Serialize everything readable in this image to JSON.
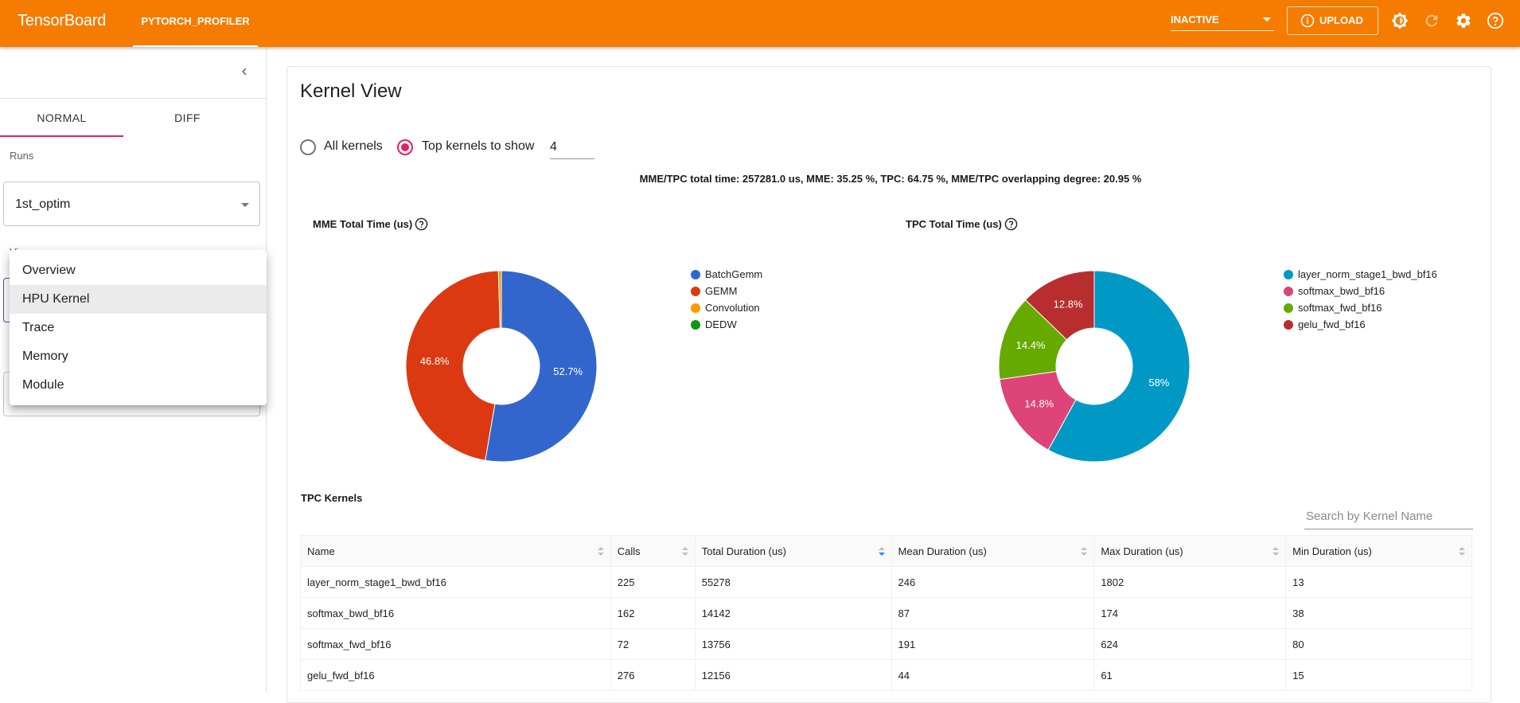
{
  "app": {
    "title": "TensorBoard",
    "active_plugin": "PYTORCH_PROFILER"
  },
  "toolbar": {
    "status_value": "INACTIVE",
    "upload_label": "UPLOAD"
  },
  "sidebar": {
    "tabs": [
      "NORMAL",
      "DIFF"
    ],
    "active_tab": "NORMAL",
    "runs_label": "Runs",
    "run_value": "1st_optim",
    "views_label": "Views",
    "views_menu": [
      "Overview",
      "HPU Kernel",
      "Trace",
      "Memory",
      "Module"
    ],
    "selected_view": "HPU Kernel"
  },
  "main": {
    "title": "Kernel View",
    "radio_all": "All kernels",
    "radio_top": "Top kernels to show",
    "top_k_value": "4",
    "summary": "MME/TPC total time: 257281.0 us, MME: 35.25 %, TPC: 64.75 %, MME/TPC overlapping degree: 20.95 %",
    "section_title": "TPC Kernels",
    "search_placeholder": "Search by Kernel Name"
  },
  "chart_data": [
    {
      "type": "pie",
      "title": "MME Total Time (us)",
      "labels": [
        "BatchGemm",
        "GEMM",
        "Convolution",
        "DEDW"
      ],
      "values": [
        52.7,
        46.8,
        0.5,
        0
      ],
      "value_labels": [
        "52.7%",
        "46.8%",
        "",
        ""
      ],
      "colors": [
        "#3366cc",
        "#dc3912",
        "#ff9900",
        "#109618"
      ],
      "donut": true,
      "legend": "right"
    },
    {
      "type": "pie",
      "title": "TPC Total Time (us)",
      "labels": [
        "layer_norm_stage1_bwd_bf16",
        "softmax_bwd_bf16",
        "softmax_fwd_bf16",
        "gelu_fwd_bf16"
      ],
      "values": [
        58,
        14.8,
        14.4,
        12.8
      ],
      "value_labels": [
        "58%",
        "14.8%",
        "14.4%",
        "12.8%"
      ],
      "colors": [
        "#0099c6",
        "#dd4477",
        "#66aa00",
        "#b82e2e"
      ],
      "donut": true,
      "legend": "right"
    }
  ],
  "table": {
    "columns": [
      "Name",
      "Calls",
      "Total Duration (us)",
      "Mean Duration (us)",
      "Max Duration (us)",
      "Min Duration (us)"
    ],
    "sorted_column": "Total Duration (us)",
    "rows": [
      [
        "layer_norm_stage1_bwd_bf16",
        "225",
        "55278",
        "246",
        "1802",
        "13"
      ],
      [
        "softmax_bwd_bf16",
        "162",
        "14142",
        "87",
        "174",
        "38"
      ],
      [
        "softmax_fwd_bf16",
        "72",
        "13756",
        "191",
        "624",
        "80"
      ],
      [
        "gelu_fwd_bf16",
        "276",
        "12156",
        "44",
        "61",
        "15"
      ]
    ]
  }
}
